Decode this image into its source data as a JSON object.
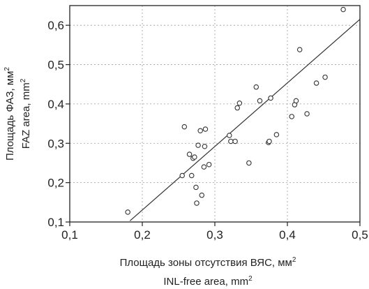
{
  "chart_data": {
    "type": "scatter",
    "title": "",
    "xlabel_lines": [
      {
        "text": "Площадь зоны отсутствия ВЯС, мм",
        "sup": "2"
      },
      {
        "text": "INL-free area, mm",
        "sup": "2"
      }
    ],
    "ylabel_lines": [
      {
        "text": "Площадь ФАЗ, мм",
        "sup": "2"
      },
      {
        "text": "FAZ area, mm",
        "sup": "2"
      }
    ],
    "xlim": [
      0.1,
      0.5
    ],
    "ylim": [
      0.1,
      0.65
    ],
    "xticks": [
      {
        "value": 0.1,
        "label": "0,1"
      },
      {
        "value": 0.2,
        "label": "0,2"
      },
      {
        "value": 0.3,
        "label": "0,3"
      },
      {
        "value": 0.4,
        "label": "0,4"
      },
      {
        "value": 0.5,
        "label": "0,5"
      }
    ],
    "yticks": [
      {
        "value": 0.1,
        "label": "0,1"
      },
      {
        "value": 0.2,
        "label": "0,2"
      },
      {
        "value": 0.3,
        "label": "0,3"
      },
      {
        "value": 0.4,
        "label": "0,4"
      },
      {
        "value": 0.5,
        "label": "0,5"
      },
      {
        "value": 0.6,
        "label": "0,6"
      }
    ],
    "grid": true,
    "points": [
      {
        "x": 0.18,
        "y": 0.125
      },
      {
        "x": 0.255,
        "y": 0.218
      },
      {
        "x": 0.258,
        "y": 0.342
      },
      {
        "x": 0.265,
        "y": 0.272
      },
      {
        "x": 0.268,
        "y": 0.218
      },
      {
        "x": 0.27,
        "y": 0.262
      },
      {
        "x": 0.272,
        "y": 0.265
      },
      {
        "x": 0.274,
        "y": 0.188
      },
      {
        "x": 0.275,
        "y": 0.148
      },
      {
        "x": 0.277,
        "y": 0.295
      },
      {
        "x": 0.28,
        "y": 0.332
      },
      {
        "x": 0.282,
        "y": 0.168
      },
      {
        "x": 0.285,
        "y": 0.24
      },
      {
        "x": 0.286,
        "y": 0.292
      },
      {
        "x": 0.287,
        "y": 0.336
      },
      {
        "x": 0.292,
        "y": 0.246
      },
      {
        "x": 0.32,
        "y": 0.32
      },
      {
        "x": 0.322,
        "y": 0.305
      },
      {
        "x": 0.328,
        "y": 0.305
      },
      {
        "x": 0.331,
        "y": 0.39
      },
      {
        "x": 0.334,
        "y": 0.402
      },
      {
        "x": 0.347,
        "y": 0.25
      },
      {
        "x": 0.357,
        "y": 0.443
      },
      {
        "x": 0.362,
        "y": 0.408
      },
      {
        "x": 0.374,
        "y": 0.302
      },
      {
        "x": 0.375,
        "y": 0.305
      },
      {
        "x": 0.377,
        "y": 0.415
      },
      {
        "x": 0.385,
        "y": 0.322
      },
      {
        "x": 0.406,
        "y": 0.368
      },
      {
        "x": 0.41,
        "y": 0.398
      },
      {
        "x": 0.412,
        "y": 0.408
      },
      {
        "x": 0.417,
        "y": 0.538
      },
      {
        "x": 0.427,
        "y": 0.375
      },
      {
        "x": 0.44,
        "y": 0.453
      },
      {
        "x": 0.452,
        "y": 0.468
      },
      {
        "x": 0.477,
        "y": 0.64
      }
    ],
    "regression_line": {
      "x": [
        0.183,
        0.5
      ],
      "y": [
        0.103,
        0.615
      ]
    },
    "colors": {
      "axis": "#222222",
      "grid": "#9a9a9a",
      "marker": "#333333",
      "line": "#333333"
    }
  }
}
